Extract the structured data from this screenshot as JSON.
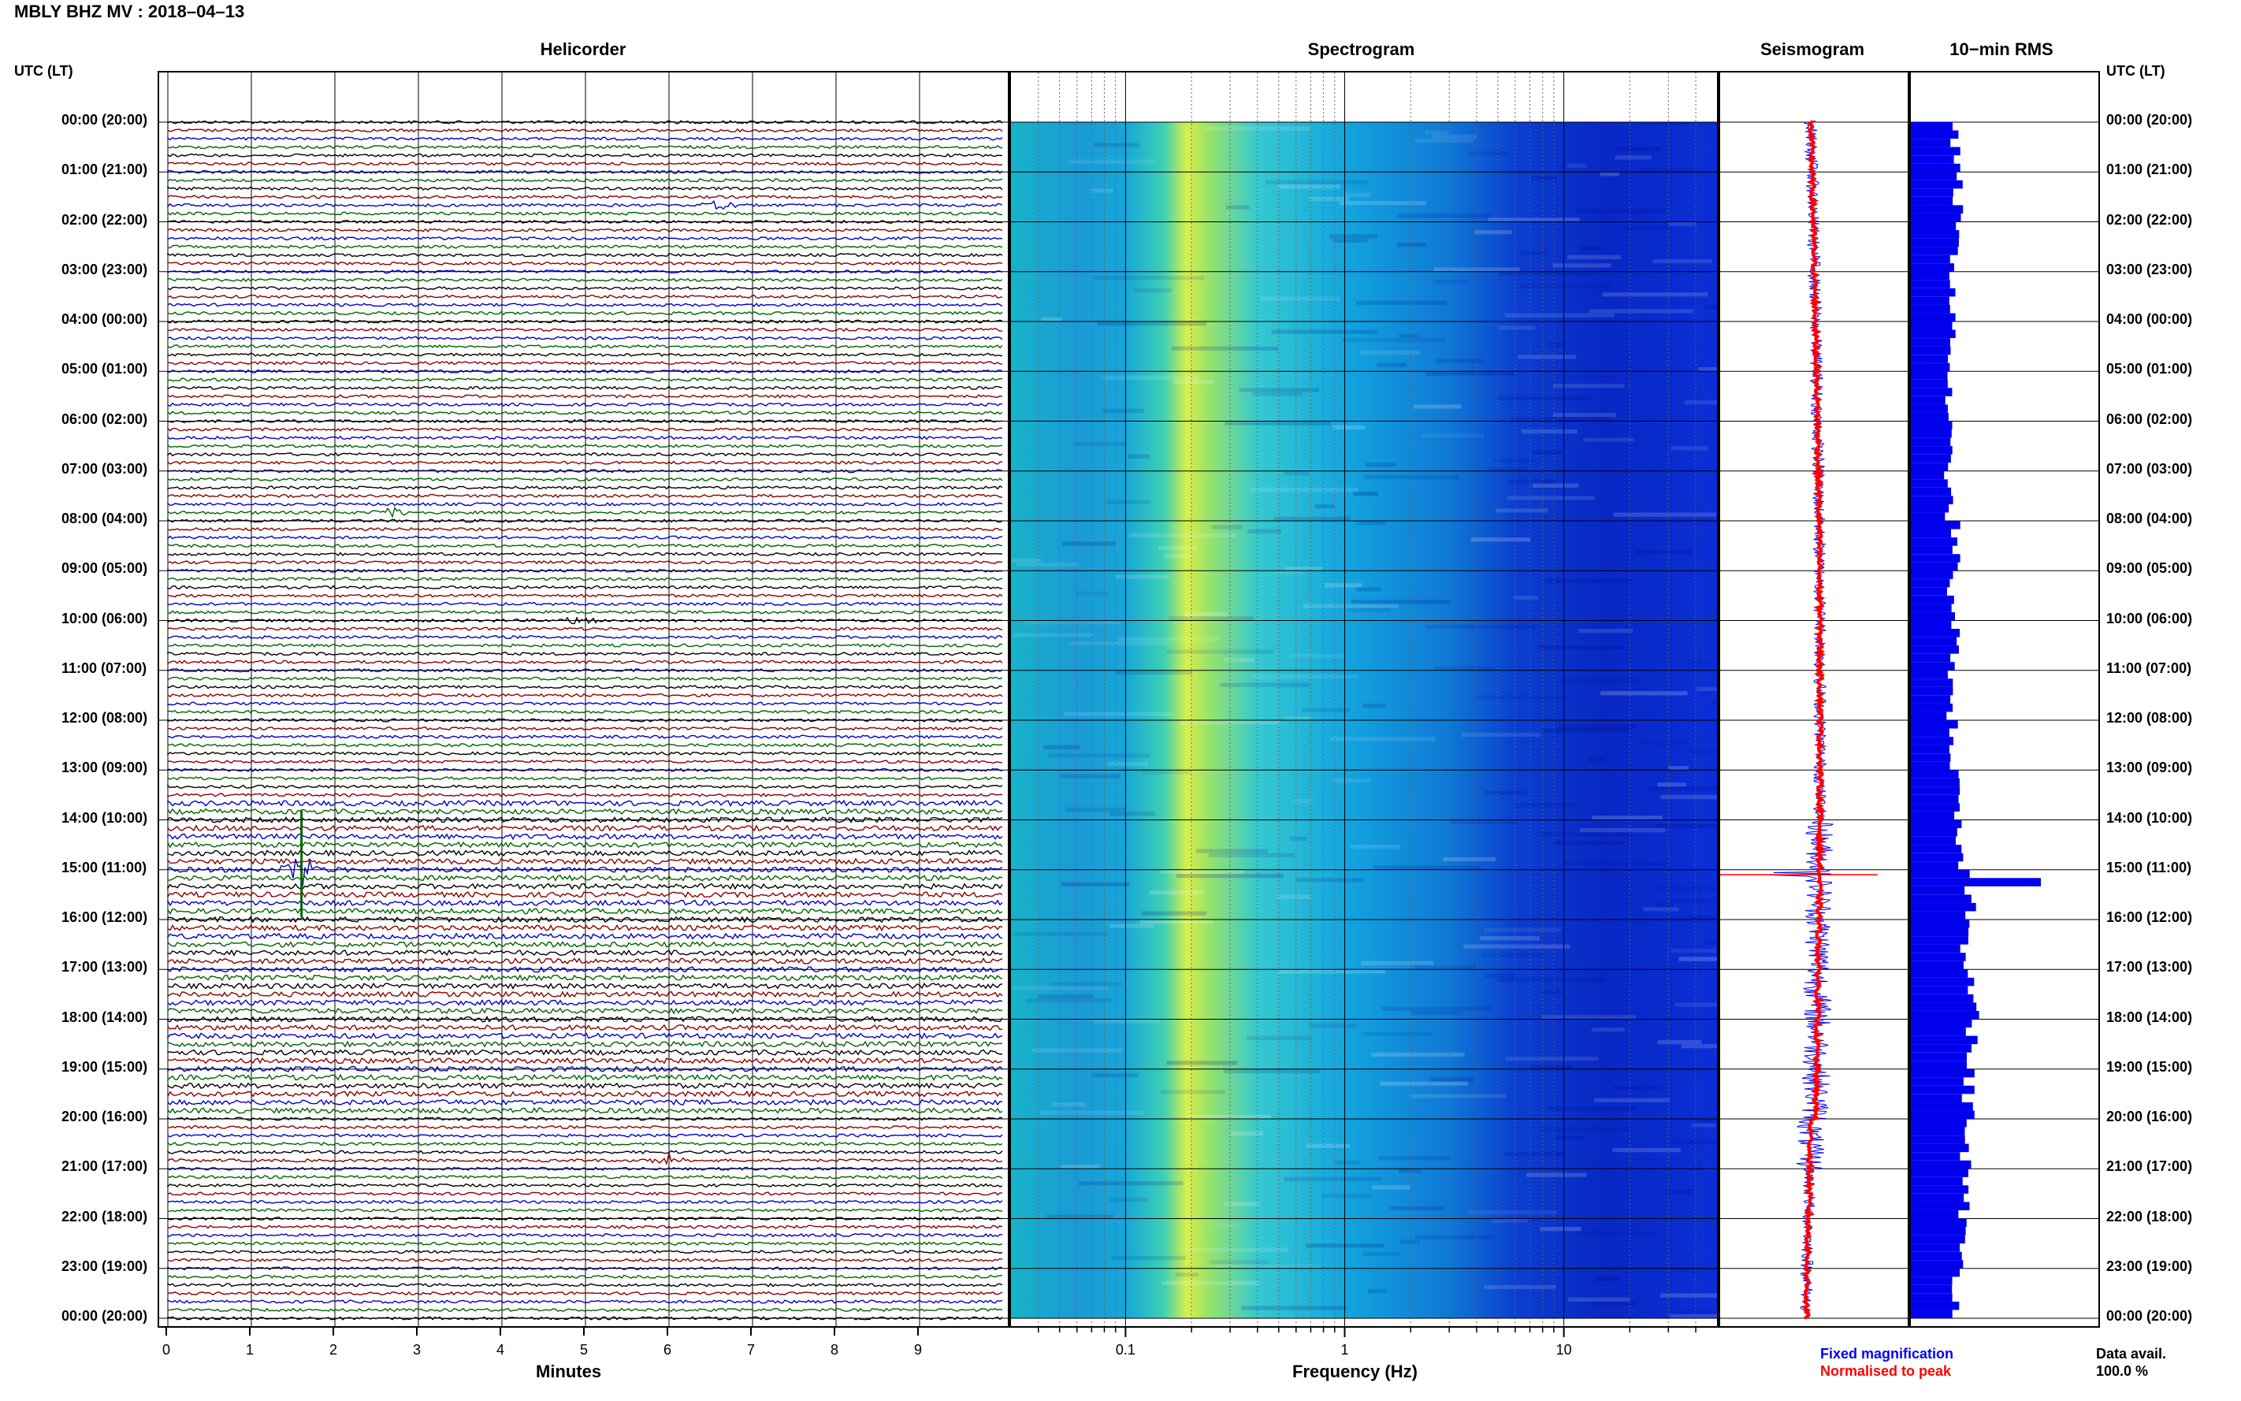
{
  "header": {
    "title": "MBLY BHZ MV : 2018–04–13"
  },
  "panels": {
    "helicorder": "Helicorder",
    "spectrogram": "Spectrogram",
    "seismogram": "Seismogram",
    "rms": "10−min RMS"
  },
  "time_axis": {
    "left_header": "UTC (LT)",
    "right_header": "UTC (LT)",
    "labels": [
      "00:00 (20:00)",
      "01:00 (21:00)",
      "02:00 (22:00)",
      "03:00 (23:00)",
      "04:00 (00:00)",
      "05:00 (01:00)",
      "06:00 (02:00)",
      "07:00 (03:00)",
      "08:00 (04:00)",
      "09:00 (05:00)",
      "10:00 (06:00)",
      "11:00 (07:00)",
      "12:00 (08:00)",
      "13:00 (09:00)",
      "14:00 (10:00)",
      "15:00 (11:00)",
      "16:00 (12:00)",
      "17:00 (13:00)",
      "18:00 (14:00)",
      "19:00 (15:00)",
      "20:00 (16:00)",
      "21:00 (17:00)",
      "22:00 (18:00)",
      "23:00 (19:00)",
      "00:00 (20:00)"
    ]
  },
  "footer": {
    "fixed_magnification": "Fixed magnification",
    "normalised_to_peak": "Normalised to peak",
    "data_avail_label": "Data avail.",
    "data_avail_value": "100.0 %"
  },
  "colors": {
    "trace_cycle": [
      "#000000",
      "#8b0000",
      "#0000cc",
      "#006400"
    ],
    "fixed_magnification": "#0000ff",
    "normalised_to_peak": "#ff0000",
    "rms_bar": "#0000ee"
  },
  "chart_data": [
    {
      "type": "line",
      "panel": "helicorder",
      "xlabel": "Minutes",
      "xlim": [
        0,
        10
      ],
      "x_ticks": [
        0,
        1,
        2,
        3,
        4,
        5,
        6,
        7,
        8,
        9
      ],
      "ylim_hours": [
        0,
        24
      ],
      "traces_per_hour": 6,
      "events": [
        {
          "hour": 1.6,
          "minute": 6.6,
          "amp": 1.0
        },
        {
          "hour": 7.9,
          "minute": 2.7,
          "amp": 0.9
        },
        {
          "hour": 10.0,
          "minute": 4.9,
          "amp": 0.6
        },
        {
          "hour": 15.0,
          "minute": 1.6,
          "amp": 3.0
        },
        {
          "hour": 20.9,
          "minute": 6.0,
          "amp": 1.0
        }
      ]
    },
    {
      "type": "heatmap",
      "panel": "spectrogram",
      "xlabel": "Frequency (Hz)",
      "x_scale": "log",
      "xlim": [
        0.03,
        50
      ],
      "x_tick_labels": [
        "0.1",
        "1",
        "10"
      ],
      "x_ticks": [
        0.1,
        1,
        10
      ],
      "ylim_hours": [
        0,
        24
      ]
    },
    {
      "type": "line",
      "panel": "seismogram",
      "ylim_hours": [
        0,
        24
      ],
      "series": [
        {
          "name": "Fixed magnification",
          "color": "#0000ff"
        },
        {
          "name": "Normalised to peak",
          "color": "#ff0000"
        }
      ],
      "spike_hour": 15.1
    },
    {
      "type": "bar",
      "panel": "rms",
      "orientation": "horizontal",
      "ylim_hours": [
        0,
        24
      ],
      "bars_per_hour": 6,
      "hourly_rms": [
        1.0,
        1.05,
        1.0,
        0.95,
        0.9,
        0.85,
        0.85,
        0.85,
        1.0,
        0.9,
        1.0,
        0.9,
        0.95,
        1.0,
        1.05,
        1.35,
        1.25,
        1.45,
        1.35,
        1.3,
        1.25,
        1.2,
        1.15,
        1.05,
        1.0
      ],
      "spike_hour": 15.2,
      "spike_value": 3.0
    }
  ]
}
